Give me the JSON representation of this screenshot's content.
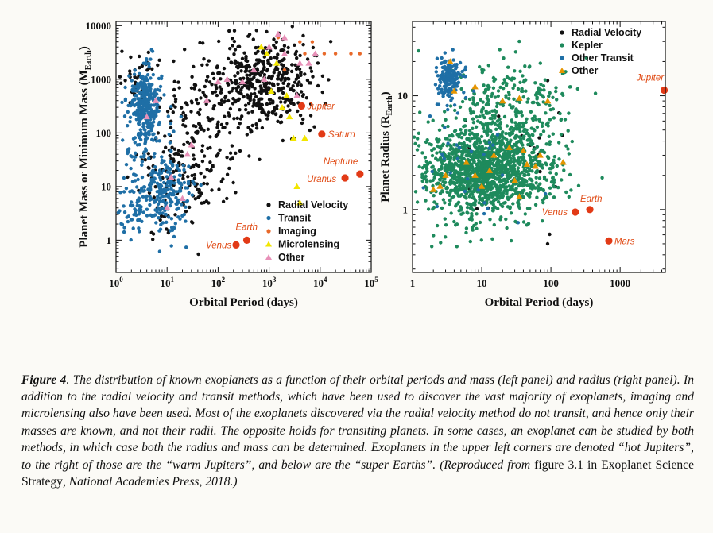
{
  "chart_data": [
    {
      "type": "scatter",
      "panel": "left",
      "xlabel": "Orbital Period (days)",
      "ylabel": "Planet Mass or Minimum Mass (M",
      "ylabel_sub": "Earth",
      "ylabel_tail": ")",
      "xscale": "log",
      "yscale": "log",
      "xlim": [
        1,
        100000
      ],
      "ylim": [
        0.25,
        12000
      ],
      "xticks": [
        {
          "value": 1,
          "base": "10",
          "exp": "0"
        },
        {
          "value": 10,
          "base": "10",
          "exp": "1"
        },
        {
          "value": 100,
          "base": "10",
          "exp": "2"
        },
        {
          "value": 1000,
          "base": "10",
          "exp": "3"
        },
        {
          "value": 10000,
          "base": "10",
          "exp": "4"
        },
        {
          "value": 100000,
          "base": "10",
          "exp": "5"
        }
      ],
      "yticks": [
        {
          "value": 1,
          "label": "1"
        },
        {
          "value": 10,
          "label": "10"
        },
        {
          "value": 100,
          "label": "100"
        },
        {
          "value": 1000,
          "label": "1000"
        },
        {
          "value": 10000,
          "label": "10000"
        }
      ],
      "legend_position": "bottom-right",
      "series": [
        {
          "name": "Radial Velocity",
          "marker": "circle",
          "color": "#111111",
          "clusters": [
            {
              "n": 420,
              "cx": 800,
              "cy": 900,
              "sx": 0.45,
              "sy": 0.42
            },
            {
              "n": 120,
              "cx": 60,
              "cy": 400,
              "sx": 0.45,
              "sy": 0.55
            },
            {
              "n": 170,
              "cx": 22,
              "cy": 20,
              "sx": 0.5,
              "sy": 0.5
            },
            {
              "n": 40,
              "cx": 3,
              "cy": 1000,
              "sx": 0.15,
              "sy": 0.3
            }
          ]
        },
        {
          "name": "Transit",
          "marker": "circle",
          "color": "#1f6fa6",
          "clusters": [
            {
              "n": 280,
              "cx": 3.6,
              "cy": 400,
              "sx": 0.14,
              "sy": 0.32
            },
            {
              "n": 220,
              "cx": 8,
              "cy": 7,
              "sx": 0.3,
              "sy": 0.35
            },
            {
              "n": 90,
              "cx": 4,
              "cy": 60,
              "sx": 0.35,
              "sy": 0.6
            },
            {
              "n": 40,
              "cx": 2,
              "cy": 3,
              "sx": 0.2,
              "sy": 0.35
            }
          ]
        },
        {
          "name": "Imaging",
          "marker": "circle",
          "color": "#e8692a",
          "points": [
            [
              1500,
              6000
            ],
            [
              4000,
              5000
            ],
            [
              7000,
              5000
            ],
            [
              12000,
              3000
            ],
            [
              20000,
              3000
            ],
            [
              40000,
              3000
            ],
            [
              60000,
              3000
            ],
            [
              2000,
              1500
            ],
            [
              5000,
              3000
            ]
          ]
        },
        {
          "name": "Microlensing",
          "marker": "triangle",
          "color": "#f2e600",
          "points": [
            [
              700,
              4000
            ],
            [
              900,
              3000
            ],
            [
              1400,
              2000
            ],
            [
              1800,
              300
            ],
            [
              2200,
              500
            ],
            [
              3000,
              80
            ],
            [
              5000,
              80
            ],
            [
              3500,
              10
            ],
            [
              4000,
              5
            ],
            [
              1100,
              600
            ],
            [
              2500,
              200
            ]
          ]
        },
        {
          "name": "Other",
          "marker": "triangle",
          "color": "#e890b8",
          "points": [
            [
              20,
              6
            ],
            [
              25,
              40
            ],
            [
              100,
              900
            ],
            [
              150,
              1000
            ],
            [
              300,
              900
            ],
            [
              800,
              1000
            ],
            [
              1500,
              7000
            ],
            [
              2000,
              3000
            ],
            [
              3500,
              500
            ],
            [
              4000,
              2000
            ],
            [
              6000,
              2000
            ],
            [
              8000,
              3000
            ],
            [
              30,
              60
            ],
            [
              60,
              400
            ],
            [
              4,
              200
            ],
            [
              6,
              400
            ],
            [
              10,
              4
            ],
            [
              1000,
              4000
            ],
            [
              2000,
              6000
            ],
            [
              500,
              1500
            ],
            [
              12,
              15
            ]
          ]
        }
      ],
      "solar_system": [
        {
          "name": "Venus",
          "x": 225,
          "y": 0.815
        },
        {
          "name": "Earth",
          "x": 365,
          "y": 1
        },
        {
          "name": "Jupiter",
          "x": 4333,
          "y": 318
        },
        {
          "name": "Saturn",
          "x": 10759,
          "y": 95
        },
        {
          "name": "Uranus",
          "x": 30687,
          "y": 14.5
        },
        {
          "name": "Neptune",
          "x": 60190,
          "y": 17.1
        }
      ]
    },
    {
      "type": "scatter",
      "panel": "right",
      "xlabel": "Orbital Period (days)",
      "ylabel": "Planet Radius (R",
      "ylabel_sub": "Earth",
      "ylabel_tail": ")",
      "xscale": "log",
      "yscale": "log",
      "xlim": [
        1,
        4500
      ],
      "ylim": [
        0.28,
        45
      ],
      "xticks": [
        {
          "value": 1,
          "label": "1"
        },
        {
          "value": 10,
          "label": "10"
        },
        {
          "value": 100,
          "label": "100"
        },
        {
          "value": 1000,
          "label": "1000"
        }
      ],
      "yticks": [
        {
          "value": 1,
          "label": "1"
        },
        {
          "value": 10,
          "label": "10"
        }
      ],
      "legend_position": "top-right",
      "series": [
        {
          "name": "Radial Velocity",
          "marker": "circle",
          "color": "#111111",
          "clusters": [
            {
              "n": 25,
              "cx": 20,
              "cy": 3,
              "sx": 0.5,
              "sy": 0.4
            }
          ]
        },
        {
          "name": "Kepler",
          "marker": "circle",
          "color": "#1e8a5c",
          "clusters": [
            {
              "n": 1400,
              "cx": 12,
              "cy": 2.2,
              "sx": 0.45,
              "sy": 0.2
            },
            {
              "n": 200,
              "cx": 20,
              "cy": 6,
              "sx": 0.45,
              "sy": 0.25
            },
            {
              "n": 90,
              "cx": 40,
              "cy": 11,
              "sx": 0.4,
              "sy": 0.15
            }
          ]
        },
        {
          "name": "Other Transit",
          "marker": "circle",
          "color": "#1f6fa6",
          "clusters": [
            {
              "n": 160,
              "cx": 3.4,
              "cy": 14,
              "sx": 0.1,
              "sy": 0.1
            },
            {
              "n": 30,
              "cx": 5,
              "cy": 2.5,
              "sx": 0.4,
              "sy": 0.3
            }
          ]
        },
        {
          "name": "Other",
          "marker": "triangle",
          "color": "#e69500",
          "points": [
            [
              3.5,
              20
            ],
            [
              4,
              11
            ],
            [
              8,
              12
            ],
            [
              20,
              9
            ],
            [
              35,
              9.5
            ],
            [
              90,
              9
            ],
            [
              15,
              3
            ],
            [
              25,
              3.5
            ],
            [
              40,
              3.3
            ],
            [
              60,
              2.4
            ],
            [
              30,
              1.8
            ],
            [
              10,
              1.6
            ],
            [
              3,
              2
            ],
            [
              6,
              2.6
            ],
            [
              2.5,
              1.6
            ],
            [
              13,
              2.2
            ],
            [
              35,
              1.3
            ],
            [
              70,
              3
            ],
            [
              2,
              1.5
            ],
            [
              45,
              2.5
            ],
            [
              150,
              2.6
            ],
            [
              8,
              2
            ]
          ]
        }
      ],
      "solar_system": [
        {
          "name": "Venus",
          "x": 225,
          "y": 0.95
        },
        {
          "name": "Earth",
          "x": 365,
          "y": 1
        },
        {
          "name": "Mars",
          "x": 687,
          "y": 0.53
        },
        {
          "name": "Jupiter",
          "x": 4333,
          "y": 11.2
        }
      ]
    }
  ],
  "caption": {
    "label": "Figure 4",
    "body": ". The distribution of known exoplanets as a function of their orbital periods and mass (left panel) and radius (right panel). In addition to the radial velocity and transit methods, which have been used to discover the vast majority of exoplanets, imaging and microlensing also have been used. Most of the exoplanets discovered via the radial velocity method do not transit, and hence only their masses are known, and not their radii. The opposite holds for transiting planets. In some cases, an exoplanet can be studied by both methods, in which case both the radius and mass can be determined. Exoplanets in the upper left corners are denoted “hot Jupiters”, to the right of those are the “warm Jupiters”, and below are the “super Earths”. (Reproduced from ",
    "ref_upright": "figure 3.1 in Exoplanet Science Strategy",
    "tail": ", National Academies Press, 2018.)"
  }
}
